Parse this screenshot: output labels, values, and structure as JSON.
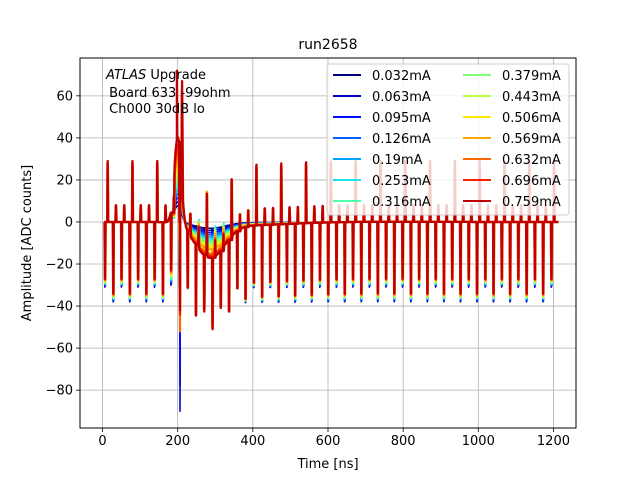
{
  "chart_data": {
    "type": "line",
    "title": "run2658",
    "xlabel": "Time [ns]",
    "ylabel": "Amplitude [ADC counts]",
    "xlim": [
      -60,
      1260
    ],
    "ylim": [
      -98,
      78
    ],
    "xticks": [
      0,
      200,
      400,
      600,
      800,
      1000,
      1200
    ],
    "yticks": [
      -80,
      -60,
      -40,
      -20,
      0,
      20,
      40,
      60
    ],
    "grid": true,
    "legend_position": "top-right",
    "legend_columns": 2,
    "annotation": {
      "italic": "ATLAS",
      "rest": " Upgrade",
      "line2": " Board 633 -99ohm",
      "line3": " Ch000 30dB lo"
    },
    "pulse": {
      "peak_time": 200,
      "undershoot_time": 285,
      "settle_time": 640,
      "baseline": 0
    },
    "spikes": {
      "start": 5,
      "end": 1195,
      "period": 22,
      "spike_low_levels": [
        -29,
        -36
      ],
      "spike_high_levels": [
        8,
        29
      ]
    },
    "series": [
      {
        "name": "0.032mA",
        "color": "#00007f",
        "peak": 8,
        "undershoot": -3,
        "extreme_low": -78
      },
      {
        "name": "0.063mA",
        "color": "#0000c8",
        "peak": 10,
        "undershoot": -4,
        "extreme_low": -90
      },
      {
        "name": "0.095mA",
        "color": "#0010ff",
        "peak": 12,
        "undershoot": -5,
        "extreme_low": -68
      },
      {
        "name": "0.126mA",
        "color": "#0060ff",
        "peak": 14,
        "undershoot": -6,
        "extreme_low": -40
      },
      {
        "name": "0.19mA",
        "color": "#00a4ff",
        "peak": 16,
        "undershoot": -7,
        "extreme_low": -35
      },
      {
        "name": "0.253mA",
        "color": "#1ae4f0",
        "peak": 18,
        "undershoot": -8,
        "extreme_low": -34
      },
      {
        "name": "0.316mA",
        "color": "#4cffaa",
        "peak": 20,
        "undershoot": -9,
        "extreme_low": -33
      },
      {
        "name": "0.379mA",
        "color": "#83ff73",
        "peak": 23,
        "undershoot": -10,
        "extreme_low": -33
      },
      {
        "name": "0.443mA",
        "color": "#b9ff3c",
        "peak": 26,
        "undershoot": -11,
        "extreme_low": -36
      },
      {
        "name": "0.506mA",
        "color": "#ffe500",
        "peak": 29,
        "undershoot": -12,
        "extreme_low": -38
      },
      {
        "name": "0.569mA",
        "color": "#ffa600",
        "peak": 32,
        "undershoot": -13,
        "extreme_low": -48
      },
      {
        "name": "0.632mA",
        "color": "#ff6700",
        "peak": 35,
        "undershoot": -15,
        "extreme_low": -52
      },
      {
        "name": "0.696mA",
        "color": "#f91e00",
        "peak": 38,
        "undershoot": -16,
        "extreme_low": -44
      },
      {
        "name": "0.759mA",
        "color": "#c00000",
        "peak": 42,
        "undershoot": -17,
        "extreme_low": -42,
        "extreme_high": 72
      }
    ]
  }
}
